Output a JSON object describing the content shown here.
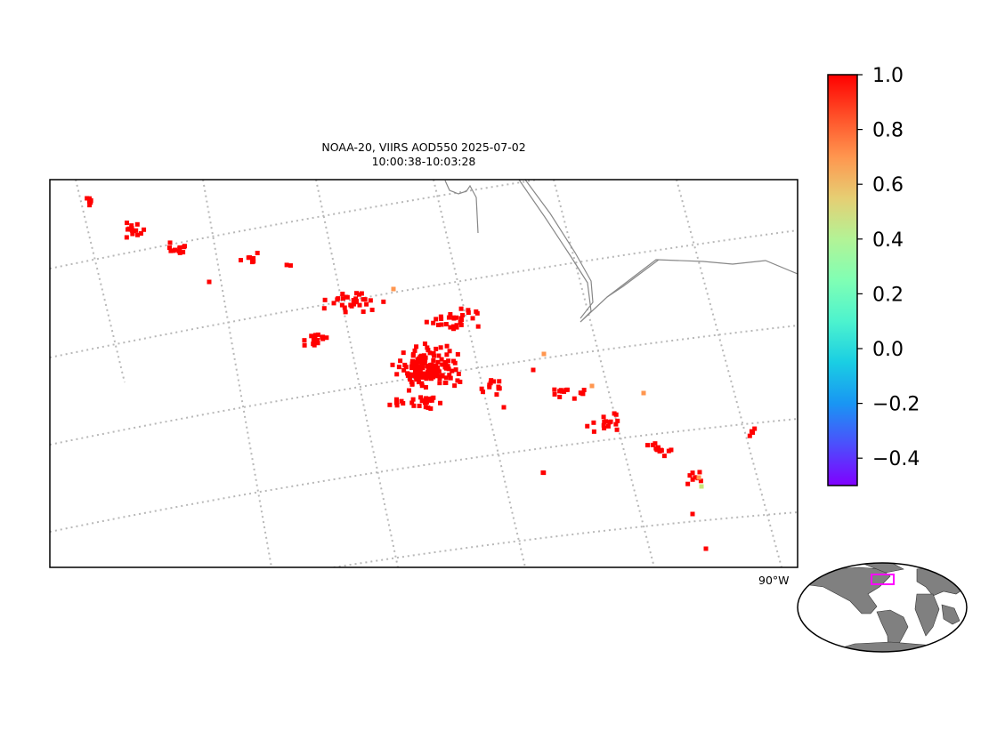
{
  "title": {
    "line1": "NOAA-20, VIIRS AOD550 2025-07-02",
    "line2": "10:00:38-10:03:28"
  },
  "longitude_label": "90°W",
  "colorbar": {
    "colormap": "rainbow",
    "min": -0.5,
    "max": 1.0,
    "ticks": [
      "1.0",
      "0.8",
      "0.6",
      "0.4",
      "0.2",
      "0.0",
      "−0.2",
      "−0.4"
    ],
    "tick_values": [
      1.0,
      0.8,
      0.6,
      0.4,
      0.2,
      0.0,
      -0.2,
      -0.4
    ]
  },
  "colors": {
    "gridline": "#b8b8b8",
    "coastline": "#888888",
    "land_inset": "#808080",
    "inset_box": "#ff00ff"
  },
  "chart_data": {
    "type": "scatter",
    "title": "NOAA-20, VIIRS AOD550 2025-07-02 10:00:38-10:03:28",
    "color_variable": "AOD550",
    "color_range": [
      -0.5,
      1.0
    ],
    "notes": "AOD retrieval pixels; nearly all values >= 1.0 (red), a few ~0.65 (orange) and one ~0.45 (yellow-green)"
  }
}
